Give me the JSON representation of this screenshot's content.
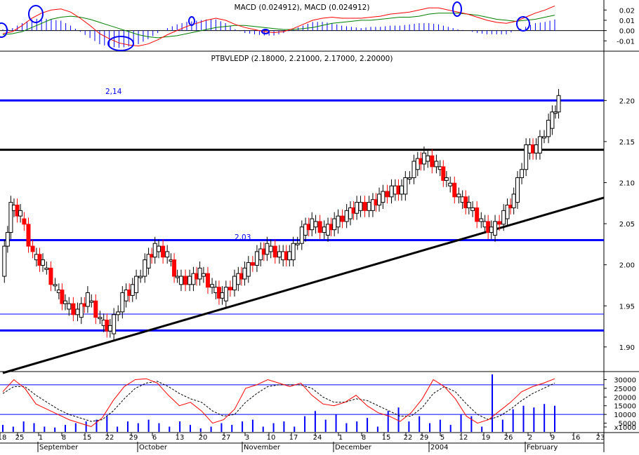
{
  "chart_data": [
    {
      "type": "line",
      "title": "MACD (0.024912), MACD (0.024912)",
      "ylim": [
        -0.018,
        0.027
      ],
      "yticks": [
        0.02,
        0.01,
        0.0,
        -0.01
      ],
      "ytick_labels": [
        "0.02",
        "0.01",
        "0.00",
        "-0.01"
      ],
      "series": [
        {
          "values": [
            -0.003,
            -0.001,
            0.005,
            0.012,
            0.017,
            0.02,
            0.021,
            0.018,
            0.012,
            0.005,
            -0.003,
            -0.008,
            -0.012,
            -0.014,
            -0.015,
            -0.013,
            -0.009,
            -0.004,
            0.0,
            0.004,
            0.007,
            0.01,
            0.012,
            0.01,
            0.006,
            0.003,
            0.001,
            -0.001,
            -0.002,
            -0.001,
            0.002,
            0.006,
            0.01,
            0.012,
            0.013,
            0.012,
            0.012,
            0.012,
            0.013,
            0.014,
            0.016,
            0.017,
            0.018,
            0.02,
            0.022,
            0.022,
            0.02,
            0.018,
            0.016,
            0.013,
            0.01,
            0.008,
            0.007,
            0.009,
            0.013,
            0.017,
            0.02,
            0.024
          ]
        },
        {
          "values": [
            -0.004,
            -0.003,
            -0.001,
            0.003,
            0.007,
            0.011,
            0.013,
            0.014,
            0.013,
            0.011,
            0.008,
            0.005,
            0.002,
            -0.001,
            -0.004,
            -0.006,
            -0.007,
            -0.006,
            -0.005,
            -0.003,
            -0.001,
            0.001,
            0.003,
            0.004,
            0.005,
            0.005,
            0.004,
            0.003,
            0.002,
            0.001,
            0.001,
            0.002,
            0.003,
            0.005,
            0.007,
            0.008,
            0.009,
            0.01,
            0.01,
            0.011,
            0.012,
            0.013,
            0.013,
            0.014,
            0.016,
            0.017,
            0.017,
            0.017,
            0.016,
            0.015,
            0.013,
            0.011,
            0.01,
            0.009,
            0.01,
            0.011,
            0.013,
            0.015
          ]
        }
      ],
      "highlight_circles": 8
    },
    {
      "type": "candlestick",
      "title": "PTBVLEDP (2.18000, 2.21000, 2.17000, 2.20000)",
      "ylim": [
        1.87,
        2.26
      ],
      "yticks": [
        2.2,
        2.15,
        2.1,
        2.05,
        2.0,
        1.95,
        1.9
      ],
      "ytick_labels": [
        "2.20",
        "2.15",
        "2.10",
        "2.05",
        "2.00",
        "1.95",
        "1.90"
      ],
      "x_dates": [
        "2003-08-22",
        "2003-08-25",
        "2003-08-28",
        "2003-09-01",
        "2003-09-04",
        "2003-09-08",
        "2003-09-11",
        "2003-09-15",
        "2003-09-18",
        "2003-09-22",
        "2003-09-25",
        "2003-09-29",
        "2003-10-02",
        "2003-10-06",
        "2003-10-09",
        "2003-10-13",
        "2003-10-16",
        "2003-10-20",
        "2003-10-23",
        "2003-10-27",
        "2003-10-30",
        "2003-11-03",
        "2003-11-06",
        "2003-11-10",
        "2003-11-13",
        "2003-11-17",
        "2003-11-20",
        "2003-11-24",
        "2003-11-27",
        "2003-12-01",
        "2003-12-04",
        "2003-12-08",
        "2003-12-11",
        "2003-12-15",
        "2003-12-18",
        "2003-12-22",
        "2003-12-25",
        "2003-12-29",
        "2004-01-01",
        "2004-01-05",
        "2004-01-08",
        "2004-01-12",
        "2004-01-15",
        "2004-01-19",
        "2004-01-22",
        "2004-01-26",
        "2004-01-29",
        "2004-02-02",
        "2004-02-05",
        "2004-02-09",
        "2004-02-12"
      ],
      "closes": [
        1.99,
        2.07,
        2.06,
        2.01,
        2.0,
        1.97,
        1.95,
        1.94,
        1.96,
        1.93,
        1.92,
        1.96,
        1.97,
        2.0,
        2.02,
        2.01,
        1.98,
        1.98,
        1.99,
        1.97,
        1.96,
        1.98,
        1.99,
        2.01,
        2.02,
        2.01,
        2.01,
        2.04,
        2.05,
        2.04,
        2.05,
        2.06,
        2.07,
        2.07,
        2.08,
        2.09,
        2.09,
        2.12,
        2.13,
        2.12,
        2.1,
        2.08,
        2.07,
        2.05,
        2.04,
        2.06,
        2.08,
        2.14,
        2.14,
        2.17,
        2.2
      ],
      "hlines": [
        {
          "y": 2.2,
          "style": "blue-thick"
        },
        {
          "y": 2.14,
          "style": "black-thick"
        },
        {
          "y": 2.03,
          "style": "blue-thick"
        },
        {
          "y": 1.94,
          "style": "blue-thin"
        },
        {
          "y": 1.92,
          "style": "blue-thick"
        }
      ],
      "trendline": {
        "start": {
          "x": "2003-08-22",
          "y": 1.87
        },
        "end": {
          "x": "2004-02-23",
          "y": 2.08
        }
      },
      "annotations": [
        "2,14",
        "2,03"
      ]
    },
    {
      "type": "line",
      "ylim": [
        0,
        33000
      ],
      "yticks": [
        30000,
        25000,
        20000,
        15000,
        10000,
        5000,
        1000
      ],
      "ytick_labels": [
        "30000",
        "25000",
        "20000",
        "15000",
        "10000",
        "5000",
        "x1000"
      ],
      "hlines": [
        27000,
        10000
      ],
      "series": [
        {
          "values": [
            23000,
            30000,
            25000,
            16000,
            13000,
            10000,
            7000,
            5000,
            3000,
            8000,
            18000,
            26000,
            30000,
            30500,
            28000,
            21000,
            15000,
            17000,
            12000,
            5000,
            7000,
            13000,
            25000,
            27000,
            30000,
            28000,
            26000,
            28000,
            21000,
            16000,
            15000,
            17000,
            21000,
            15000,
            11000,
            9000,
            6000,
            11000,
            19000,
            30000,
            26000,
            19000,
            9000,
            5000,
            7000,
            12000,
            17000,
            23000,
            26000,
            28000,
            30500
          ]
        },
        {
          "values": [
            22000,
            26000,
            26000,
            21000,
            17000,
            13000,
            10000,
            8000,
            6000,
            7000,
            12000,
            19000,
            25000,
            28000,
            29000,
            26000,
            22000,
            19000,
            17000,
            12000,
            9000,
            10000,
            17000,
            22000,
            26000,
            27000,
            27000,
            27000,
            25000,
            20000,
            17000,
            17000,
            19000,
            18000,
            15000,
            12000,
            9000,
            9000,
            14000,
            22000,
            26000,
            23000,
            16000,
            10000,
            7000,
            9000,
            13000,
            18000,
            22000,
            25000,
            28000
          ]
        }
      ],
      "volume": [
        4000,
        3000,
        6000,
        5000,
        3000,
        2500,
        4000,
        5000,
        6000,
        7000,
        9000,
        3000,
        6000,
        5000,
        7000,
        5000,
        3000,
        6000,
        4000,
        2000,
        3000,
        5000,
        4000,
        6000,
        7000,
        3000,
        5000,
        6000,
        3000,
        9000,
        12000,
        7000,
        10000,
        5000,
        6000,
        8000,
        3000,
        12000,
        14000,
        6000,
        9000,
        5000,
        7000,
        4000,
        10000,
        9000,
        3000,
        33000,
        7000,
        13000,
        15000,
        14000,
        16000,
        15000
      ]
    }
  ],
  "xaxis": {
    "day_labels": [
      "18",
      "25",
      "1",
      "8",
      "15",
      "22",
      "29",
      "6",
      "13",
      "20",
      "27",
      "3",
      "10",
      "17",
      "24",
      "1",
      "8",
      "15",
      "22",
      "29",
      "5",
      "12",
      "19",
      "26",
      "2",
      "9",
      "16",
      "23"
    ],
    "month_labels": [
      "September",
      "October",
      "November",
      "December",
      "2004",
      "February"
    ]
  },
  "colors": {
    "blue": "#0000ff",
    "red": "#ff0000",
    "green": "#008000",
    "black": "#000000",
    "grid_line": "#0000cc"
  }
}
